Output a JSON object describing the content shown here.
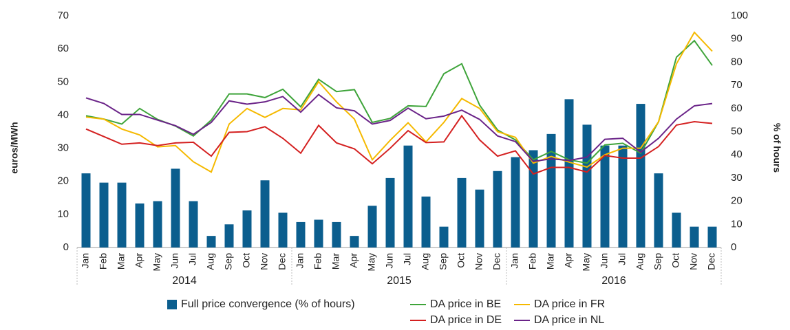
{
  "chart_data": {
    "type": "combo",
    "y_label": "euros/MWh",
    "y2_label": "% of hours",
    "categories": [
      "Jan",
      "Feb",
      "Mar",
      "Apr",
      "May",
      "Jun",
      "Jul",
      "Aug",
      "Sep",
      "Oct",
      "Nov",
      "Dec",
      "Jan",
      "Feb",
      "Mar",
      "Apr",
      "May",
      "Jun",
      "Jul",
      "Aug",
      "Sep",
      "Oct",
      "Nov",
      "Dec",
      "Jan",
      "Feb",
      "Mar",
      "Apr",
      "May",
      "Jun",
      "Jul",
      "Aug",
      "Sep",
      "Oct",
      "Nov",
      "Dec"
    ],
    "groups": [
      "2014",
      "2015",
      "2016"
    ],
    "ylim": [
      0,
      70
    ],
    "yticks": [
      0,
      10,
      20,
      30,
      40,
      50,
      60,
      70
    ],
    "y2lim": [
      0,
      100
    ],
    "y2ticks": [
      0,
      10,
      20,
      30,
      40,
      50,
      60,
      70,
      80,
      90,
      100
    ],
    "series": [
      {
        "name": "Full price convergence (% of hours)",
        "type": "bar",
        "axis": "y2",
        "color": "#0b5e8e",
        "values": [
          32,
          28,
          28,
          19,
          20,
          34,
          20,
          5,
          10,
          16,
          29,
          15,
          11,
          12,
          11,
          5,
          18,
          30,
          44,
          22,
          9,
          30,
          25,
          33,
          39,
          42,
          49,
          64,
          53,
          44,
          44,
          62,
          32,
          15,
          9,
          9
        ]
      },
      {
        "name": "DA price in BE",
        "type": "line",
        "color": "#3ea43a",
        "values": [
          39.8,
          38.8,
          37.3,
          42,
          38.7,
          36.7,
          33.7,
          38.5,
          46.4,
          46.4,
          45.3,
          47.8,
          42.5,
          50.8,
          47.1,
          47.7,
          37.8,
          39,
          42.8,
          42.6,
          52.5,
          55.5,
          43,
          35.5,
          32.5,
          26.5,
          29,
          26.5,
          25.5,
          31,
          31.5,
          28.5,
          38,
          57.5,
          62.5,
          55
        ]
      },
      {
        "name": "DA price in FR",
        "type": "line",
        "color": "#f5b900",
        "values": [
          39.4,
          38.8,
          35.8,
          34,
          30.4,
          30.8,
          25.9,
          22.8,
          37.3,
          42,
          39.3,
          42,
          41.6,
          50.1,
          44,
          38.8,
          26.5,
          32.4,
          37.7,
          31.9,
          37.8,
          45,
          42,
          35,
          33.3,
          25.5,
          27.5,
          25.8,
          24.3,
          28,
          30,
          30,
          38,
          55.5,
          65,
          59.3
        ]
      },
      {
        "name": "DA price in DE",
        "type": "line",
        "color": "#d42020",
        "values": [
          35.8,
          33.5,
          31.2,
          31.6,
          30.8,
          31.6,
          31.8,
          27.6,
          34.8,
          35,
          36.5,
          33,
          28.5,
          36.9,
          31.6,
          29.8,
          25.3,
          30,
          35.3,
          31.7,
          31.9,
          39.8,
          32.5,
          27.6,
          29.2,
          22.2,
          24.2,
          24.2,
          22.8,
          27.8,
          27,
          27,
          30.5,
          37,
          38,
          37.5
        ]
      },
      {
        "name": "DA price in NL",
        "type": "line",
        "color": "#6a2388",
        "values": [
          45.2,
          43.5,
          40.2,
          40.2,
          38.5,
          36.8,
          34.2,
          37.8,
          44.3,
          43.3,
          44,
          45.6,
          40.9,
          46.2,
          42.2,
          41.3,
          37.3,
          38.4,
          42.1,
          38.9,
          39.7,
          41.5,
          38.7,
          33.7,
          32,
          26,
          26.8,
          26.3,
          27.3,
          32.7,
          33,
          28.8,
          33,
          38.8,
          42.8,
          43.5
        ]
      }
    ]
  }
}
